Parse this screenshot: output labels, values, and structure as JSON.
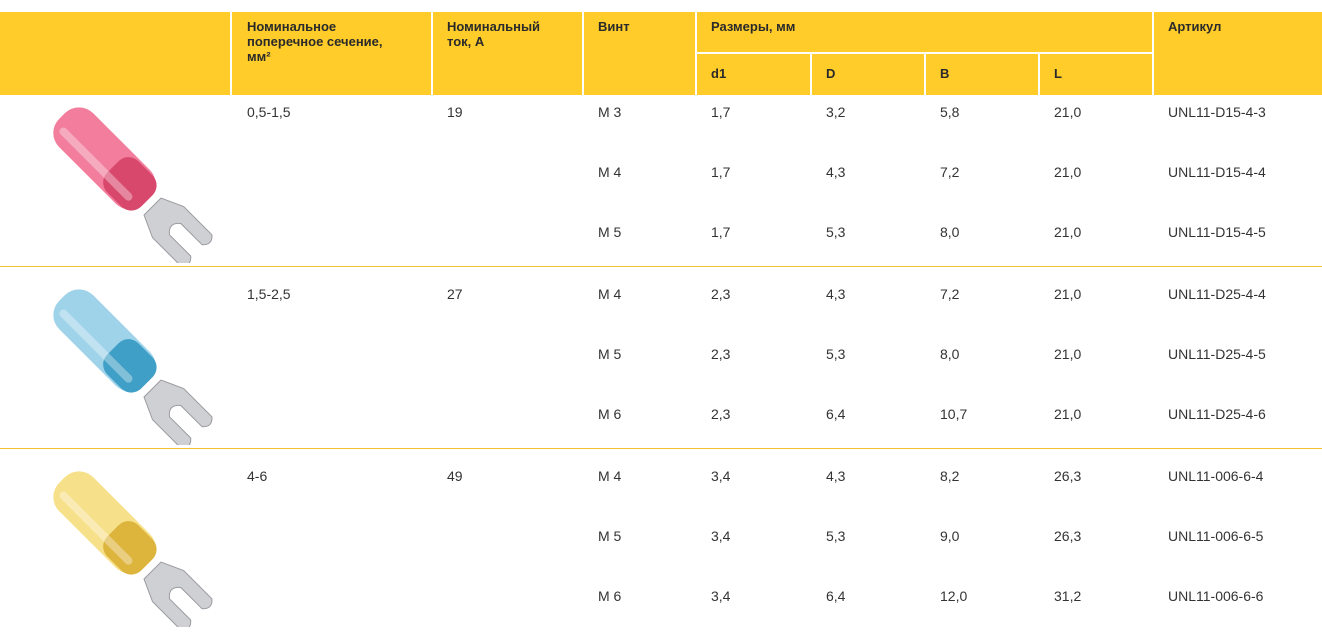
{
  "table": {
    "headers": {
      "cross_section": [
        "Номинальное",
        "поперечное сечение,",
        "мм²"
      ],
      "current": [
        "Номинальный",
        "ток, А"
      ],
      "screw": "Винт",
      "dimensions": "Размеры, мм",
      "sub": [
        "d1",
        "D",
        "B",
        "L"
      ],
      "article": "Артикул"
    },
    "groups": [
      {
        "cross_section": "0,5-1,5",
        "current": "19",
        "rows": [
          [
            "M 3",
            "1,7",
            "3,2",
            "5,8",
            "21,0",
            "UNL11-D15-4-3"
          ],
          [
            "M 4",
            "1,7",
            "4,3",
            "7,2",
            "21,0",
            "UNL11-D15-4-4"
          ],
          [
            "M 5",
            "1,7",
            "5,3",
            "8,0",
            "21,0",
            "UNL11-D15-4-5"
          ]
        ]
      },
      {
        "cross_section": "1,5-2,5",
        "current": "27",
        "rows": [
          [
            "M 4",
            "2,3",
            "4,3",
            "7,2",
            "21,0",
            "UNL11-D25-4-4"
          ],
          [
            "M 5",
            "2,3",
            "5,3",
            "8,0",
            "21,0",
            "UNL11-D25-4-5"
          ],
          [
            "M 6",
            "2,3",
            "6,4",
            "10,7",
            "21,0",
            "UNL11-D25-4-6"
          ]
        ]
      },
      {
        "cross_section": "4-6",
        "current": "49",
        "rows": [
          [
            "M 4",
            "3,4",
            "4,3",
            "8,2",
            "26,3",
            "UNL11-006-6-4"
          ],
          [
            "M 5",
            "3,4",
            "5,3",
            "9,0",
            "26,3",
            "UNL11-006-6-5"
          ],
          [
            "M 6",
            "3,4",
            "6,4",
            "12,0",
            "31,2",
            "UNL11-006-6-6"
          ]
        ]
      }
    ]
  }
}
